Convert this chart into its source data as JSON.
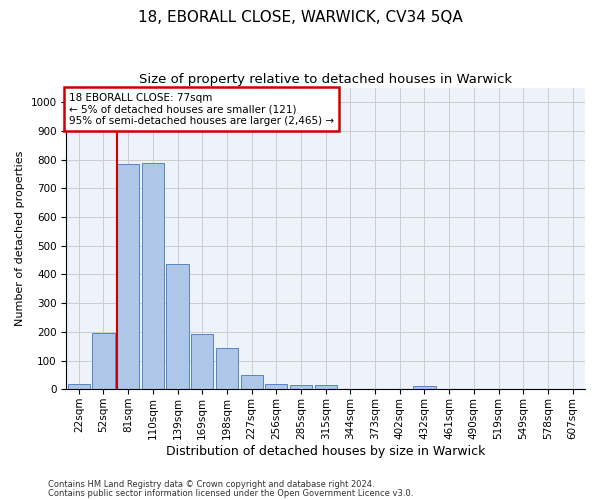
{
  "title1": "18, EBORALL CLOSE, WARWICK, CV34 5QA",
  "title2": "Size of property relative to detached houses in Warwick",
  "xlabel": "Distribution of detached houses by size in Warwick",
  "ylabel": "Number of detached properties",
  "categories": [
    "22sqm",
    "52sqm",
    "81sqm",
    "110sqm",
    "139sqm",
    "169sqm",
    "198sqm",
    "227sqm",
    "256sqm",
    "285sqm",
    "315sqm",
    "344sqm",
    "373sqm",
    "402sqm",
    "432sqm",
    "461sqm",
    "490sqm",
    "519sqm",
    "549sqm",
    "578sqm",
    "607sqm"
  ],
  "values": [
    18,
    195,
    785,
    790,
    438,
    193,
    142,
    50,
    17,
    14,
    14,
    0,
    0,
    0,
    11,
    0,
    0,
    0,
    0,
    0,
    0
  ],
  "bar_color": "#aec6e8",
  "bar_edge_color": "#5585c5",
  "vline_color": "#cc0000",
  "annotation_text": "18 EBORALL CLOSE: 77sqm\n← 5% of detached houses are smaller (121)\n95% of semi-detached houses are larger (2,465) →",
  "annotation_box_color": "#cc0000",
  "ylim": [
    0,
    1050
  ],
  "yticks": [
    0,
    100,
    200,
    300,
    400,
    500,
    600,
    700,
    800,
    900,
    1000
  ],
  "grid_color": "#cccccc",
  "bg_color": "#eef2fa",
  "footer1": "Contains HM Land Registry data © Crown copyright and database right 2024.",
  "footer2": "Contains public sector information licensed under the Open Government Licence v3.0.",
  "title1_fontsize": 11,
  "title2_fontsize": 9.5,
  "xlabel_fontsize": 9,
  "ylabel_fontsize": 8,
  "tick_fontsize": 7.5,
  "annotation_fontsize": 7.5,
  "footer_fontsize": 6
}
